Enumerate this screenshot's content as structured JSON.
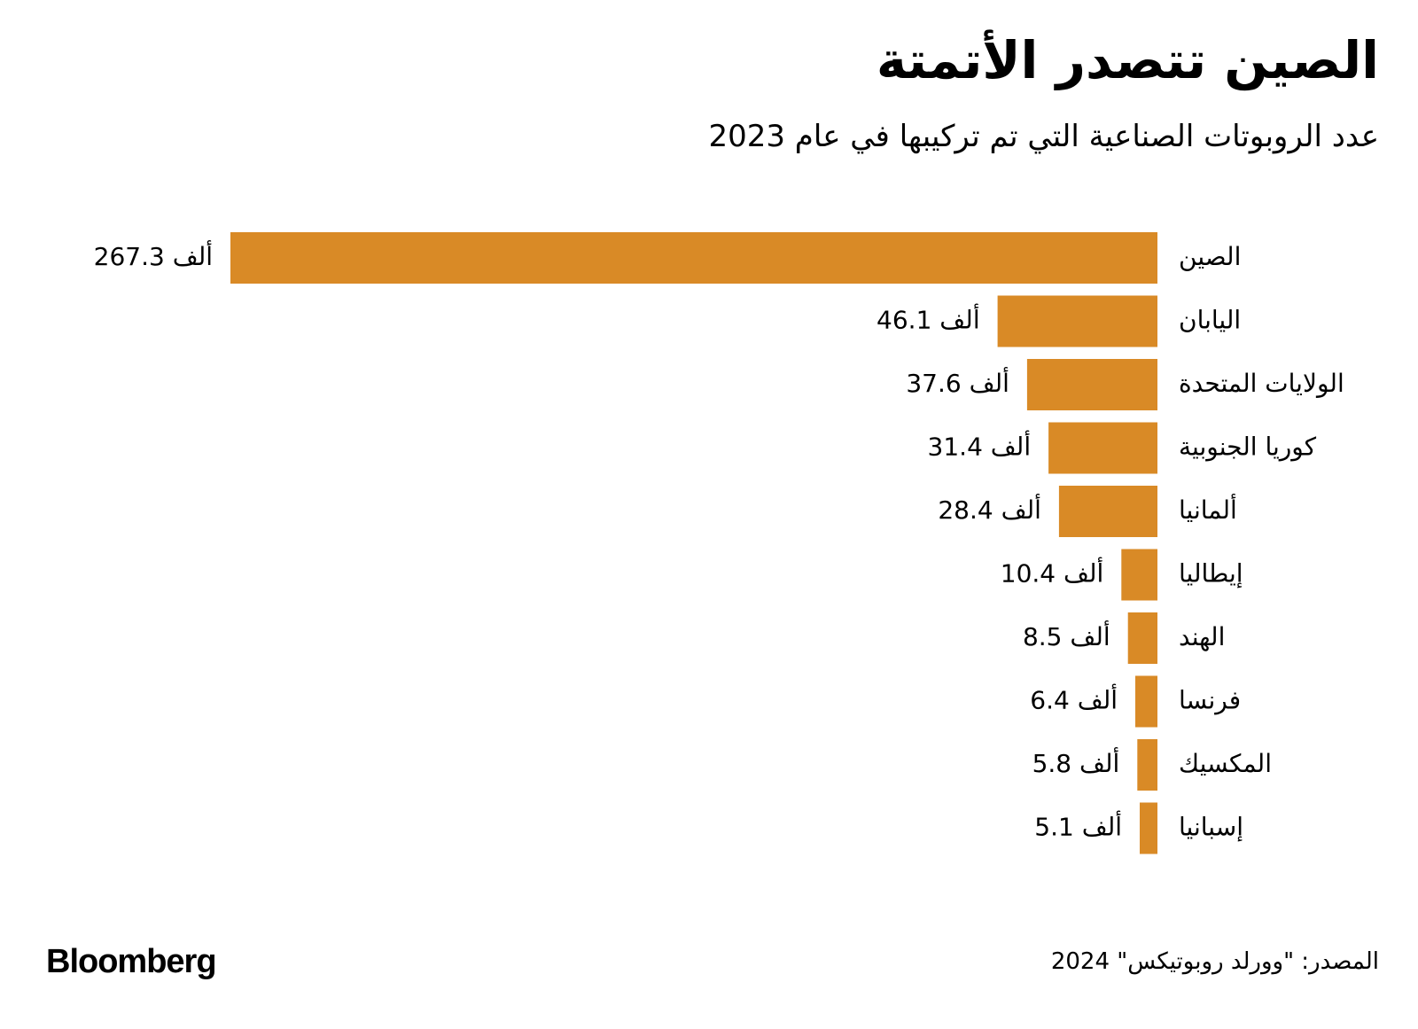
{
  "title": "الصين تتصدر الأتمتة",
  "subtitle": "عدد الروبوتات الصناعية التي تم تركيبها في عام 2023",
  "source": "المصدر: \"وورلد روبوتيكس\" 2024",
  "logo": "Bloomberg",
  "colors": {
    "bar": "#D98A26",
    "text": "#000000",
    "background": "#FFFFFF"
  },
  "chart_data": {
    "type": "bar",
    "orientation": "horizontal",
    "unit_suffix": "ألف",
    "categories": [
      "الصين",
      "اليابان",
      "الولايات المتحدة",
      "كوريا الجنوبية",
      "ألمانيا",
      "إيطاليا",
      "الهند",
      "فرنسا",
      "المكسيك",
      "إسبانيا"
    ],
    "values": [
      267.3,
      46.1,
      37.6,
      31.4,
      28.4,
      10.4,
      8.5,
      6.4,
      5.8,
      5.1
    ],
    "data_labels": [
      "267.3 ألف",
      "46.1 ألف",
      "37.6 ألف",
      "31.4 ألف",
      "28.4 ألف",
      "10.4 ألف",
      "8.5 ألف",
      "6.4 ألف",
      "5.8 ألف",
      "5.1 ألف"
    ],
    "xlim": [
      0,
      267.3
    ],
    "grid": false,
    "legend": "none"
  }
}
